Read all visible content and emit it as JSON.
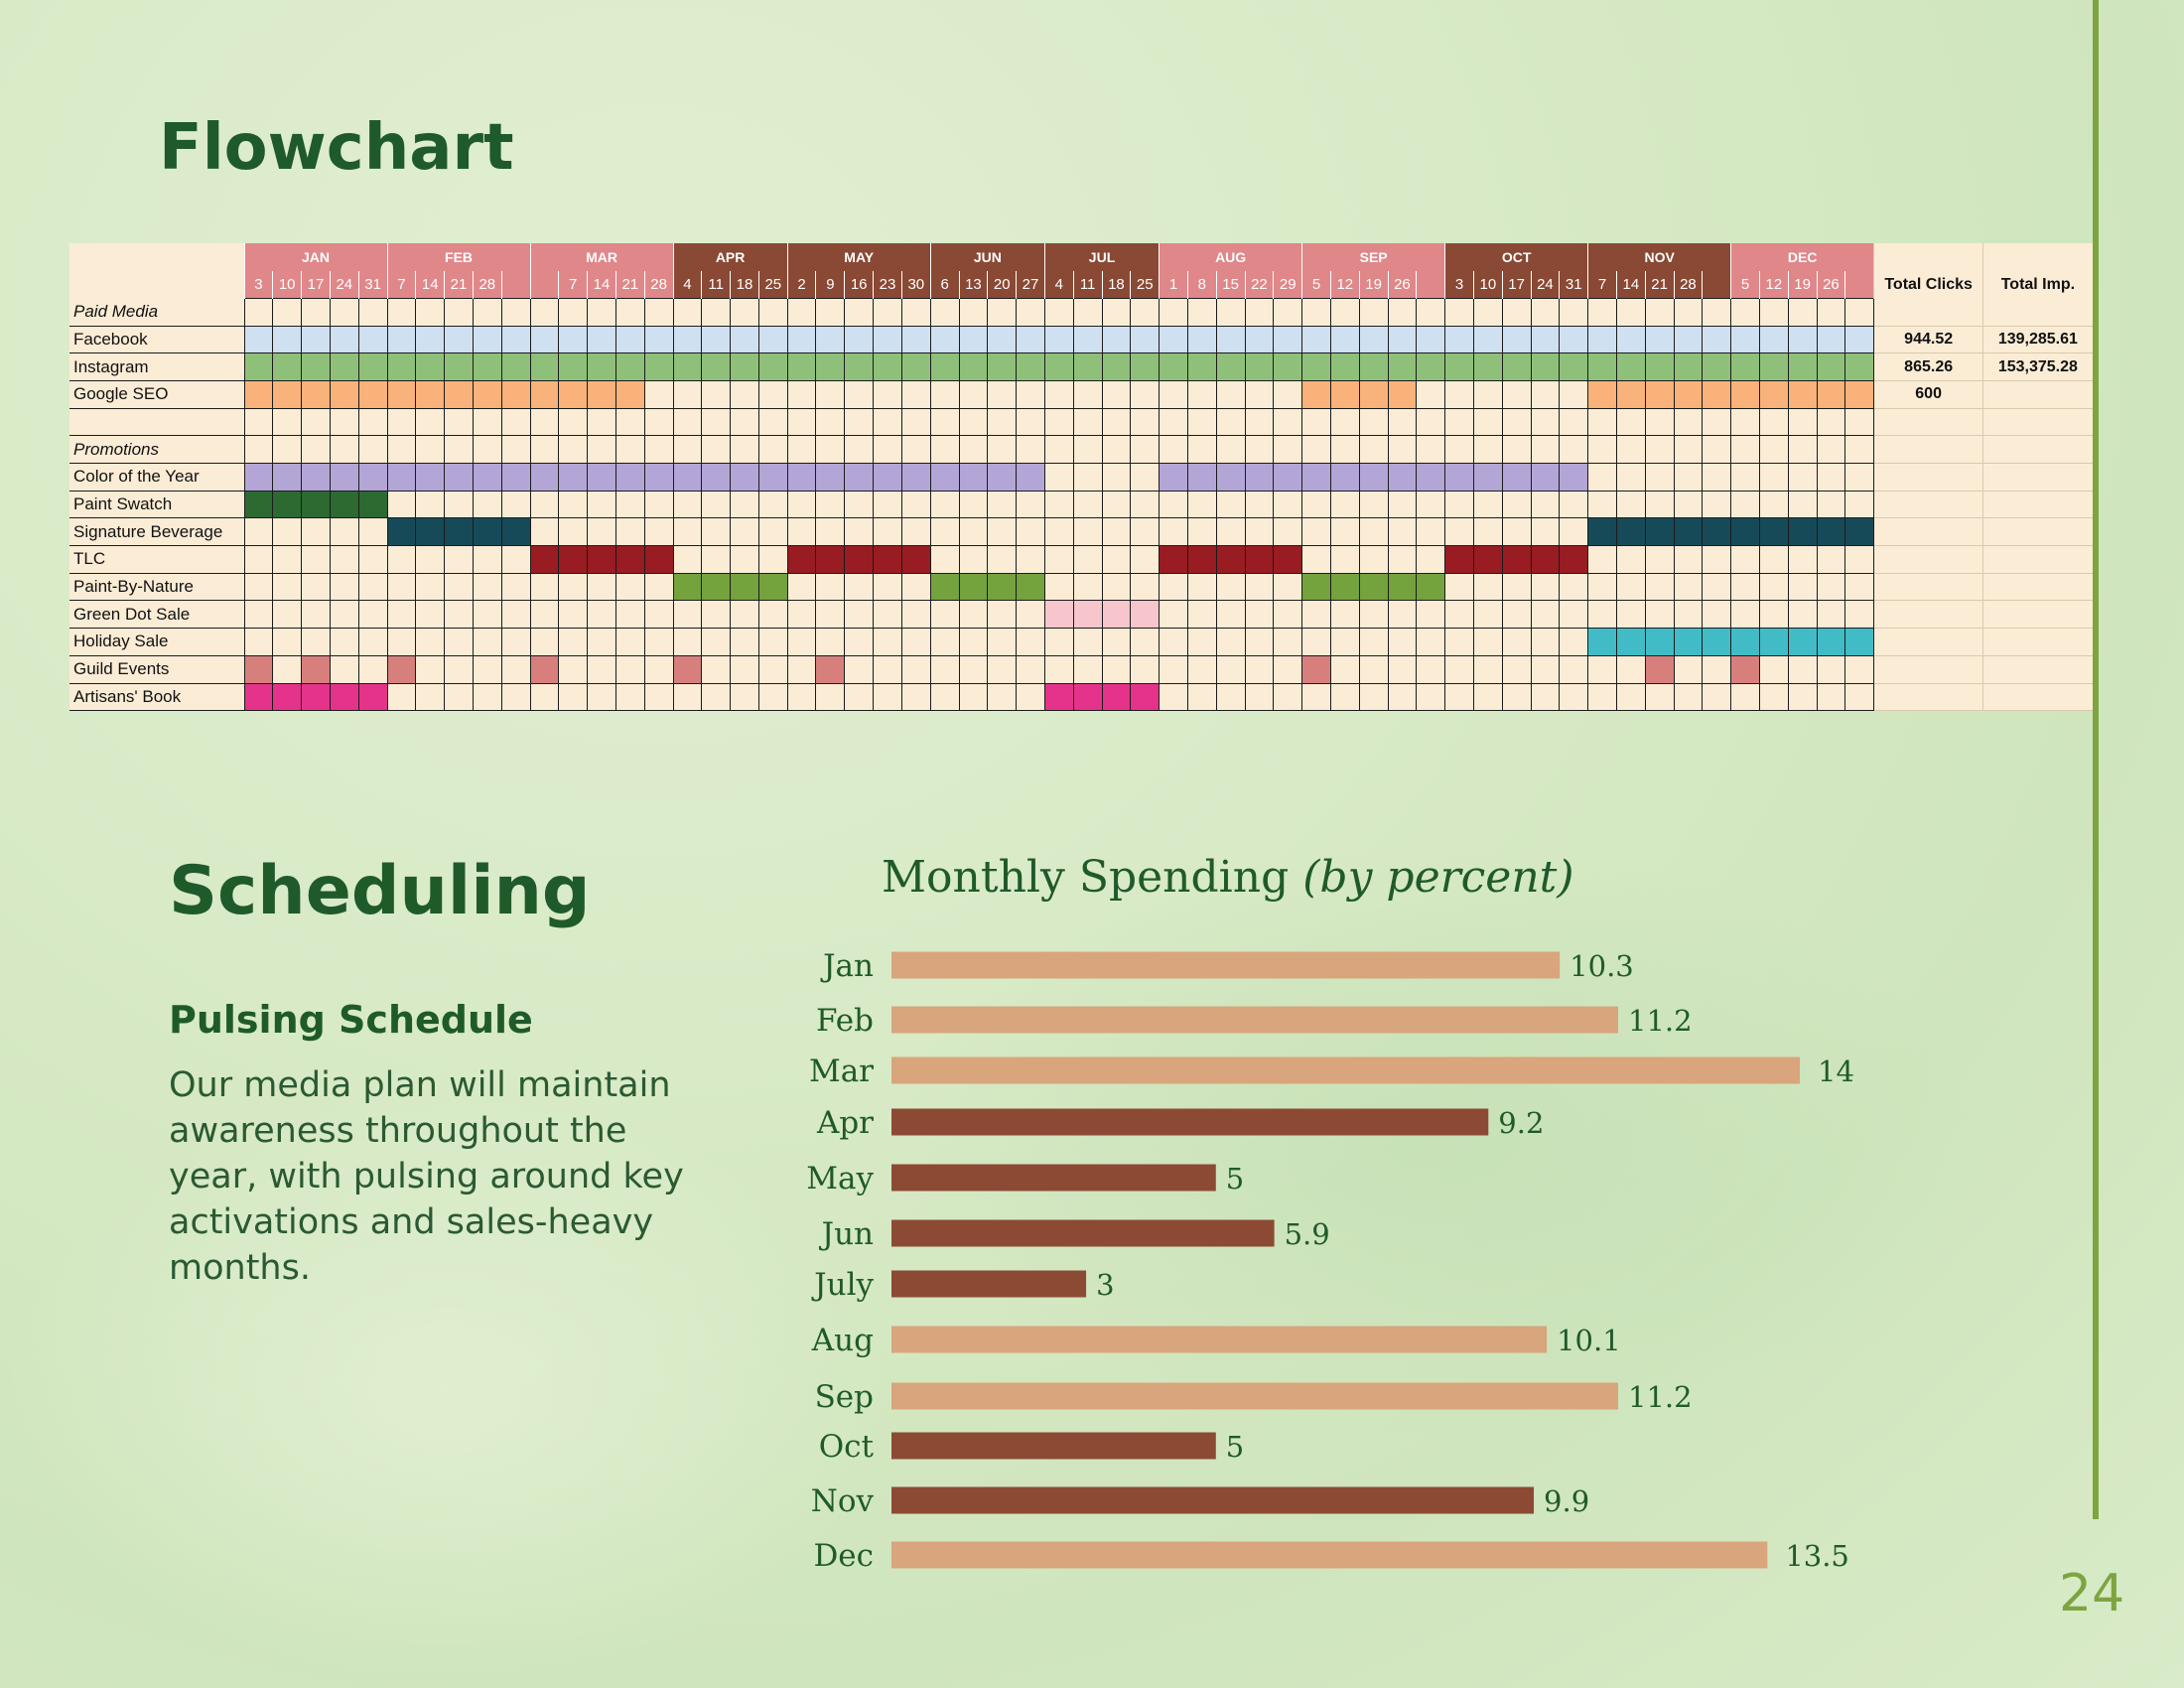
{
  "flowchart_title": "Flowchart",
  "scheduling_title": "Scheduling",
  "pulsing_heading": "Pulsing Schedule",
  "pulsing_body": "Our media plan will maintain awareness throughout the year, with pulsing around key activations and sales-heavy months.",
  "page_number": "24",
  "colors": {
    "light_month": "#e0878a",
    "dark_month": "#8a4934",
    "cell_bg": "#fbecd6",
    "bar_light": "#d9a57c",
    "bar_dark": "#8c4a35",
    "title_green": "#1f5a2b",
    "accent_green": "#7ea440"
  },
  "gantt": {
    "months": [
      {
        "name": "JAN",
        "days": [
          "3",
          "10",
          "17",
          "24",
          "31"
        ],
        "tone": "light"
      },
      {
        "name": "FEB",
        "days": [
          "7",
          "14",
          "21",
          "28",
          ""
        ],
        "tone": "light"
      },
      {
        "name": "MAR",
        "days": [
          "",
          "7",
          "14",
          "21",
          "28"
        ],
        "tone": "light"
      },
      {
        "name": "APR",
        "days": [
          "4",
          "11",
          "18",
          "25"
        ],
        "tone": "dark"
      },
      {
        "name": "MAY",
        "days": [
          "2",
          "9",
          "16",
          "23",
          "30"
        ],
        "tone": "dark"
      },
      {
        "name": "JUN",
        "days": [
          "6",
          "13",
          "20",
          "27"
        ],
        "tone": "dark"
      },
      {
        "name": "JUL",
        "days": [
          "4",
          "11",
          "18",
          "25"
        ],
        "tone": "dark"
      },
      {
        "name": "AUG",
        "days": [
          "1",
          "8",
          "15",
          "22",
          "29"
        ],
        "tone": "light"
      },
      {
        "name": "SEP",
        "days": [
          "5",
          "12",
          "19",
          "26",
          ""
        ],
        "tone": "light"
      },
      {
        "name": "OCT",
        "days": [
          "3",
          "10",
          "17",
          "24",
          "31"
        ],
        "tone": "dark"
      },
      {
        "name": "NOV",
        "days": [
          "7",
          "14",
          "21",
          "28",
          ""
        ],
        "tone": "dark"
      },
      {
        "name": "DEC",
        "days": [
          "5",
          "12",
          "19",
          "26",
          ""
        ],
        "tone": "light"
      }
    ],
    "total_headers": [
      "Total Clicks",
      "Total Imp."
    ],
    "rows": [
      {
        "label": "Paid Media",
        "header": true
      },
      {
        "label": "Facebook",
        "color": "#cfe0f1",
        "ranges": [
          [
            0,
            57
          ]
        ],
        "totals": [
          "944.52",
          "139,285.61"
        ]
      },
      {
        "label": "Instagram",
        "color": "#8fc07a",
        "ranges": [
          [
            0,
            57
          ]
        ],
        "totals": [
          "865.26",
          "153,375.28"
        ]
      },
      {
        "label": "Google SEO",
        "color": "#f8b27a",
        "ranges": [
          [
            0,
            14
          ],
          [
            37,
            41
          ],
          [
            47,
            57
          ]
        ],
        "totals": [
          "600",
          ""
        ]
      },
      {
        "label": "",
        "spacer": true
      },
      {
        "label": "Promotions",
        "header": true
      },
      {
        "label": "Color of the Year",
        "color": "#b3a6d6",
        "ranges": [
          [
            0,
            28
          ],
          [
            32,
            47
          ]
        ]
      },
      {
        "label": "Paint Swatch",
        "color": "#2c6a32",
        "ranges": [
          [
            0,
            5
          ]
        ]
      },
      {
        "label": "Signature Beverage",
        "color": "#174a58",
        "ranges": [
          [
            5,
            10
          ],
          [
            47,
            57
          ]
        ]
      },
      {
        "label": "TLC",
        "color": "#981c22",
        "ranges": [
          [
            10,
            15
          ],
          [
            19,
            24
          ],
          [
            32,
            37
          ],
          [
            42,
            47
          ]
        ]
      },
      {
        "label": "Paint-By-Nature",
        "color": "#74a23d",
        "ranges": [
          [
            15,
            19
          ],
          [
            24,
            28
          ],
          [
            37,
            42
          ]
        ]
      },
      {
        "label": "Green Dot Sale",
        "color": "#f6c6cc",
        "ranges": [
          [
            28,
            32
          ]
        ]
      },
      {
        "label": "Holiday Sale",
        "color": "#41bcc6",
        "ranges": [
          [
            47,
            57
          ]
        ]
      },
      {
        "label": "Guild Events",
        "color": "#d77f7d",
        "ranges": [
          [
            0,
            1
          ],
          [
            2,
            3
          ],
          [
            5,
            6
          ],
          [
            10,
            11
          ],
          [
            15,
            16
          ],
          [
            20,
            21
          ],
          [
            37,
            38
          ],
          [
            49,
            50
          ],
          [
            52,
            53
          ]
        ]
      },
      {
        "label": "Artisans' Book",
        "color": "#e5338b",
        "ranges": [
          [
            0,
            5
          ],
          [
            28,
            32
          ]
        ]
      }
    ]
  },
  "chart_data": {
    "type": "bar",
    "orientation": "horizontal",
    "title": "Monthly Spending ",
    "title_italic": "(by percent)",
    "categories": [
      "Jan",
      "Feb",
      "Mar",
      "Apr",
      "May",
      "Jun",
      "July",
      "Aug",
      "Sep",
      "Oct",
      "Nov",
      "Dec"
    ],
    "values": [
      10.3,
      11.2,
      14,
      9.2,
      5,
      5.9,
      3,
      10.1,
      11.2,
      5,
      9.9,
      13.5
    ],
    "value_labels": [
      "10.3",
      "11.2",
      "14",
      "9.2",
      "5",
      "5.9",
      "3",
      "10.1",
      "11.2",
      "5",
      "9.9",
      "13.5"
    ],
    "tones": [
      "light",
      "light",
      "light",
      "dark",
      "dark",
      "dark",
      "dark",
      "light",
      "light",
      "dark",
      "dark",
      "light"
    ],
    "xlim": [
      0,
      14
    ]
  }
}
